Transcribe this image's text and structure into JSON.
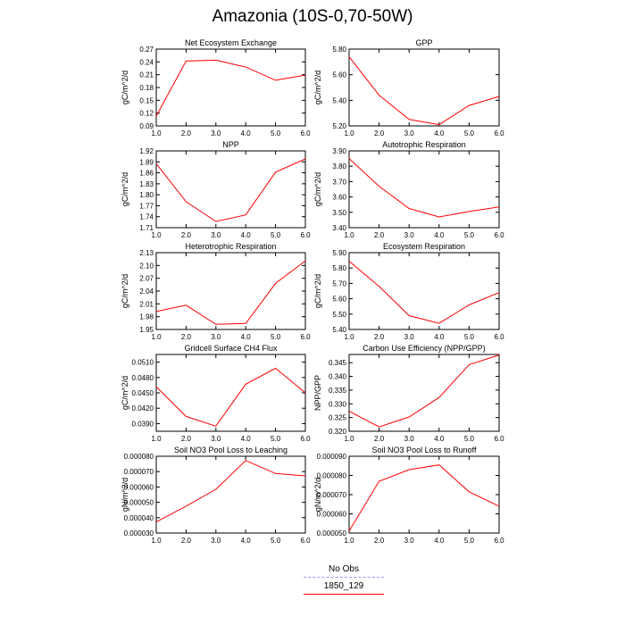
{
  "title": "Amazonia (10S-0,70-50W)",
  "legend": {
    "items": [
      {
        "label": "No Obs",
        "color": "#9999ff",
        "style": "dashed"
      },
      {
        "label": "1850_129",
        "color": "#ff0000",
        "style": "solid"
      }
    ]
  },
  "chart_data": [
    {
      "type": "line",
      "title": "Net Ecosystem Exchange",
      "ylabel": "gC/m^2/d",
      "x": [
        1,
        2,
        3,
        4,
        5,
        6
      ],
      "xticks": [
        "1.0",
        "2.0",
        "3.0",
        "4.0",
        "5.0",
        "6.0"
      ],
      "xlim": [
        1,
        6
      ],
      "ylim": [
        0.09,
        0.27
      ],
      "yticks": [
        "0.09",
        "0.12",
        "0.15",
        "0.18",
        "0.21",
        "0.24",
        "0.27"
      ],
      "series": [
        {
          "name": "1850_129",
          "values": [
            0.113,
            0.242,
            0.244,
            0.228,
            0.197,
            0.209
          ]
        }
      ]
    },
    {
      "type": "line",
      "title": "GPP",
      "ylabel": "gC/m^2/d",
      "x": [
        1,
        2,
        3,
        4,
        5,
        6
      ],
      "xticks": [
        "1.0",
        "2.0",
        "3.0",
        "4.0",
        "5.0",
        "6.0"
      ],
      "xlim": [
        1,
        6
      ],
      "ylim": [
        5.2,
        5.8
      ],
      "yticks": [
        "5.20",
        "5.40",
        "5.60",
        "5.80"
      ],
      "series": [
        {
          "name": "1850_129",
          "values": [
            5.74,
            5.44,
            5.25,
            5.21,
            5.36,
            5.43
          ]
        }
      ]
    },
    {
      "type": "line",
      "title": "NPP",
      "ylabel": "gC/m^2/d",
      "x": [
        1,
        2,
        3,
        4,
        5,
        6
      ],
      "xticks": [
        "1.0",
        "2.0",
        "3.0",
        "4.0",
        "5.0",
        "6.0"
      ],
      "xlim": [
        1,
        6
      ],
      "ylim": [
        1.71,
        1.92
      ],
      "yticks": [
        "1.71",
        "1.74",
        "1.77",
        "1.80",
        "1.83",
        "1.86",
        "1.89",
        "1.92"
      ],
      "series": [
        {
          "name": "1850_129",
          "values": [
            1.885,
            1.781,
            1.727,
            1.745,
            1.862,
            1.898
          ]
        }
      ]
    },
    {
      "type": "line",
      "title": "Autotrophic Respiration",
      "ylabel": "gC/m^2/d",
      "x": [
        1,
        2,
        3,
        4,
        5,
        6
      ],
      "xticks": [
        "1.0",
        "2.0",
        "3.0",
        "4.0",
        "5.0",
        "6.0"
      ],
      "xlim": [
        1,
        6
      ],
      "ylim": [
        3.4,
        3.9
      ],
      "yticks": [
        "3.40",
        "3.50",
        "3.60",
        "3.70",
        "3.80",
        "3.90"
      ],
      "series": [
        {
          "name": "1850_129",
          "values": [
            3.85,
            3.67,
            3.525,
            3.47,
            3.505,
            3.535
          ]
        }
      ]
    },
    {
      "type": "line",
      "title": "Heterotrophic Respiration",
      "ylabel": "gC/m^2/d",
      "x": [
        1,
        2,
        3,
        4,
        5,
        6
      ],
      "xticks": [
        "1.0",
        "2.0",
        "3.0",
        "4.0",
        "5.0",
        "6.0"
      ],
      "xlim": [
        1,
        6
      ],
      "ylim": [
        1.95,
        2.13
      ],
      "yticks": [
        "1.95",
        "1.98",
        "2.01",
        "2.04",
        "2.07",
        "2.10",
        "2.13"
      ],
      "series": [
        {
          "name": "1850_129",
          "values": [
            1.992,
            2.007,
            1.962,
            1.964,
            2.058,
            2.111
          ]
        }
      ]
    },
    {
      "type": "line",
      "title": "Ecosystem Respiration",
      "ylabel": "gC/m^2/d",
      "x": [
        1,
        2,
        3,
        4,
        5,
        6
      ],
      "xticks": [
        "1.0",
        "2.0",
        "3.0",
        "4.0",
        "5.0",
        "6.0"
      ],
      "xlim": [
        1,
        6
      ],
      "ylim": [
        5.4,
        5.9
      ],
      "yticks": [
        "5.40",
        "5.50",
        "5.60",
        "5.70",
        "5.80",
        "5.90"
      ],
      "series": [
        {
          "name": "1850_129",
          "values": [
            5.845,
            5.68,
            5.49,
            5.44,
            5.56,
            5.64
          ]
        }
      ]
    },
    {
      "type": "line",
      "title": "Gridcell Surface CH4 Flux",
      "ylabel": "gC/m^2/d",
      "x": [
        1,
        2,
        3,
        4,
        5,
        6
      ],
      "xticks": [
        "1.0",
        "2.0",
        "3.0",
        "4.0",
        "5.0",
        "6.0"
      ],
      "xlim": [
        1,
        6
      ],
      "ylim": [
        0.0375,
        0.0525
      ],
      "yticks": [
        "0.0390",
        "0.0420",
        "0.0450",
        "0.0480",
        "0.0510"
      ],
      "series": [
        {
          "name": "1850_129",
          "values": [
            0.0462,
            0.0404,
            0.0385,
            0.0467,
            0.0498,
            0.045
          ]
        }
      ]
    },
    {
      "type": "line",
      "title": "Carbon Use Efficiency (NPP/GPP)",
      "ylabel": "NPP/GPP",
      "x": [
        1,
        2,
        3,
        4,
        5,
        6
      ],
      "xticks": [
        "1.0",
        "2.0",
        "3.0",
        "4.0",
        "5.0",
        "6.0"
      ],
      "xlim": [
        1,
        6
      ],
      "ylim": [
        0.32,
        0.348
      ],
      "yticks": [
        "0.320",
        "0.325",
        "0.330",
        "0.335",
        "0.340",
        "0.345"
      ],
      "series": [
        {
          "name": "1850_129",
          "values": [
            0.3273,
            0.3216,
            0.3252,
            0.3323,
            0.3443,
            0.3478
          ]
        }
      ]
    },
    {
      "type": "line",
      "title": "Soil NO3 Pool Loss to Leaching",
      "ylabel": "gN/m^2/d",
      "x": [
        1,
        2,
        3,
        4,
        5,
        6
      ],
      "xticks": [
        "1.0",
        "2.0",
        "3.0",
        "4.0",
        "5.0",
        "6.0"
      ],
      "xlim": [
        1,
        6
      ],
      "ylim": [
        3e-05,
        8e-05
      ],
      "yticks": [
        "0.000030",
        "0.000040",
        "0.000050",
        "0.000060",
        "0.000070",
        "0.000080"
      ],
      "series": [
        {
          "name": "1850_129",
          "values": [
            3.72e-05,
            4.75e-05,
            5.85e-05,
            7.72e-05,
            6.88e-05,
            6.72e-05
          ]
        }
      ]
    },
    {
      "type": "line",
      "title": "Soil NO3 Pool Loss to Runoff",
      "ylabel": "gN/m^2/d",
      "x": [
        1,
        2,
        3,
        4,
        5,
        6
      ],
      "xticks": [
        "1.0",
        "2.0",
        "3.0",
        "4.0",
        "5.0",
        "6.0"
      ],
      "xlim": [
        1,
        6
      ],
      "ylim": [
        5e-05,
        9e-05
      ],
      "yticks": [
        "0.000050",
        "0.000060",
        "0.000070",
        "0.000080",
        "0.000090"
      ],
      "series": [
        {
          "name": "1850_129",
          "values": [
            5.1e-05,
            7.7e-05,
            8.3e-05,
            8.55e-05,
            7.15e-05,
            6.4e-05
          ]
        }
      ]
    }
  ]
}
